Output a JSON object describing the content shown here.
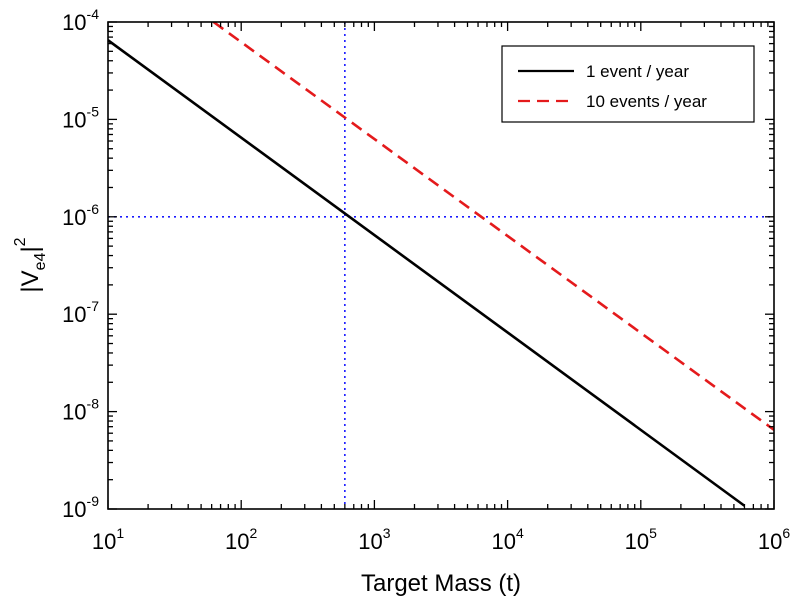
{
  "chart_data": {
    "type": "line",
    "xlabel": "Target Mass (t)",
    "ylabel": "|Ve4|",
    "ylabel_parts": {
      "bar_left": "|",
      "base": "V",
      "subscript": "e4",
      "bar_right": "|",
      "superscript": "2"
    },
    "xscale": "log",
    "yscale": "log",
    "xlim": [
      10,
      1000000
    ],
    "ylim": [
      1e-09,
      0.0001
    ],
    "x_ticks": [
      {
        "base": "10",
        "exp": "1"
      },
      {
        "base": "10",
        "exp": "2"
      },
      {
        "base": "10",
        "exp": "3"
      },
      {
        "base": "10",
        "exp": "4"
      },
      {
        "base": "10",
        "exp": "5"
      },
      {
        "base": "10",
        "exp": "6"
      }
    ],
    "y_ticks": [
      {
        "base": "10",
        "exp": "-9"
      },
      {
        "base": "10",
        "exp": "-8"
      },
      {
        "base": "10",
        "exp": "-7"
      },
      {
        "base": "10",
        "exp": "-6"
      },
      {
        "base": "10",
        "exp": "-5"
      },
      {
        "base": "10",
        "exp": "-4"
      }
    ],
    "series": [
      {
        "name": "1  event / year",
        "x": [
          10,
          600000
        ],
        "y": [
          6.5e-05,
          1.08e-09
        ],
        "color": "#000000",
        "dash": "solid"
      },
      {
        "name": "10 events / year",
        "x": [
          62,
          1000000
        ],
        "y": [
          0.0001,
          6.5e-09
        ],
        "color": "#e41a1c",
        "dash": "dashed"
      }
    ],
    "reference_lines": [
      {
        "orientation": "vertical",
        "value": 600,
        "color": "#1a1aff",
        "dash": "dotted"
      },
      {
        "orientation": "horizontal",
        "value": 1e-06,
        "color": "#1a1aff",
        "dash": "dotted"
      }
    ],
    "grid": false,
    "legend_position": "top-right"
  }
}
